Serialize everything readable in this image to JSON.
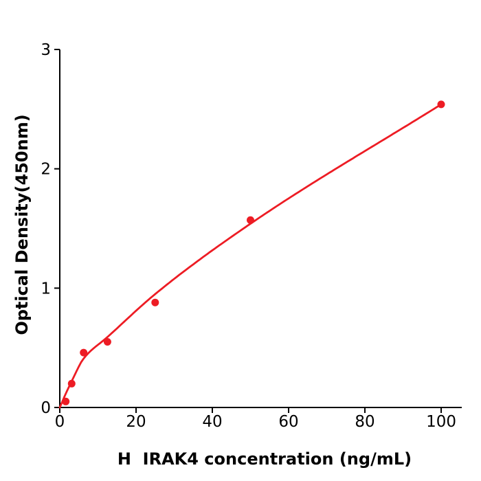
{
  "chart_data": {
    "type": "scatter",
    "title": "",
    "xlabel": "H  IRAK4 concentration (ng/mL)",
    "ylabel": "Optical Density(450nm)",
    "points": [
      {
        "x": 1.56,
        "y": 0.05
      },
      {
        "x": 3.125,
        "y": 0.2
      },
      {
        "x": 6.25,
        "y": 0.46
      },
      {
        "x": 12.5,
        "y": 0.55
      },
      {
        "x": 25,
        "y": 0.88
      },
      {
        "x": 50,
        "y": 1.57
      },
      {
        "x": 100,
        "y": 2.54
      }
    ],
    "fit_curve": {
      "description": "smooth fitted standard curve through origin",
      "points": [
        [
          0,
          0
        ],
        [
          1.56,
          0.115
        ],
        [
          3.125,
          0.22
        ],
        [
          6.25,
          0.41
        ],
        [
          12.5,
          0.59
        ],
        [
          25,
          0.95
        ],
        [
          50,
          1.54
        ],
        [
          100,
          2.54
        ]
      ]
    },
    "xticks": [
      0,
      20,
      40,
      60,
      80,
      100
    ],
    "yticks": [
      0,
      1,
      2,
      3
    ],
    "xlim": [
      0,
      105.4
    ],
    "ylim": [
      0,
      3
    ],
    "grid": false,
    "legend": null,
    "series_color": "#ed1c24",
    "axis_color": "#000000",
    "background_color": "#ffffff",
    "marker": "circle"
  }
}
